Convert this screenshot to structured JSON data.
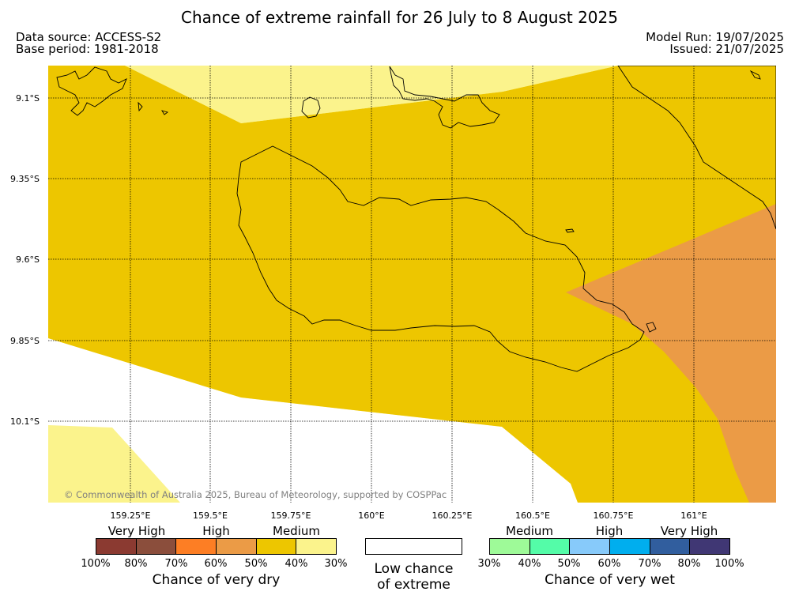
{
  "title": "Chance of extreme rainfall for 26 July to 8 August 2025",
  "data_source": "Data source: ACCESS-S2",
  "base_period": "Base period: 1981-2018",
  "model_run": "Model Run: 19/07/2025",
  "issued": "Issued: 21/07/2025",
  "copyright": "© Commonwealth of Australia 2025, Bureau of Meteorology, supported by COSPPac",
  "map": {
    "lat_labels": [
      "9.1°S",
      "9.35°S",
      "9.6°S",
      "9.85°S",
      "10.1°S"
    ],
    "lon_labels": [
      "159.25°E",
      "159.5°E",
      "159.75°E",
      "160°E",
      "160.25°E",
      "160.5°E",
      "160.75°E",
      "161°E"
    ],
    "regions": [
      {
        "category": "Medium",
        "side": "dry",
        "range": "30%–40%",
        "color": "#FBF38C"
      },
      {
        "category": "Medium",
        "side": "dry",
        "range": "40%–50%",
        "color": "#EDC600"
      },
      {
        "category": "High",
        "side": "dry",
        "range": "50%–60%",
        "color": "#EB9B46"
      }
    ]
  },
  "legend": {
    "dry": {
      "categories": [
        "Very High",
        "High",
        "Medium"
      ],
      "ticks": [
        "100%",
        "80%",
        "70%",
        "60%",
        "50%",
        "40%",
        "30%"
      ],
      "colors": [
        "#8B3A31",
        "#8B4E3C",
        "#FD7E24",
        "#EB9B46",
        "#EDC600",
        "#FBF38C"
      ],
      "caption": "Chance of very dry"
    },
    "neutral": {
      "caption_line1": "Low chance",
      "caption_line2": "of extreme",
      "color": "#FFFFFF"
    },
    "wet": {
      "categories": [
        "Medium",
        "High",
        "Very High"
      ],
      "ticks": [
        "30%",
        "40%",
        "50%",
        "60%",
        "70%",
        "80%",
        "100%"
      ],
      "colors": [
        "#9EFA98",
        "#54FCA8",
        "#87CAFA",
        "#00AEEE",
        "#315E9E",
        "#403774"
      ],
      "caption": "Chance of very wet"
    }
  }
}
